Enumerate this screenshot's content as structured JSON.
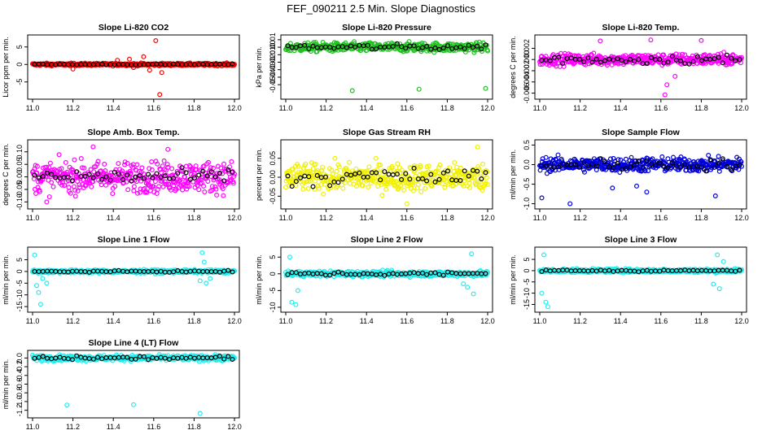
{
  "title": "FEF_090211  2.5 Min. Slope Diagnostics",
  "chart_data": [
    {
      "type": "scatter",
      "title": "Slope Li-820 CO2",
      "ylabel": "Licor ppm per min.",
      "xlim": [
        11.0,
        12.0
      ],
      "ylim": [
        -9,
        7.5
      ],
      "xticks": [
        "11.0",
        "11.2",
        "11.4",
        "11.6",
        "11.8",
        "12.0"
      ],
      "yticks": [
        "-5",
        "0",
        "5"
      ],
      "ytick_values": [
        -5,
        0,
        5
      ],
      "color": "#ff0000",
      "base_spread": 0.35,
      "outliers": [
        {
          "x": 11.61,
          "y": 6.8
        },
        {
          "x": 11.55,
          "y": 2.2
        },
        {
          "x": 11.48,
          "y": 1.5
        },
        {
          "x": 11.58,
          "y": -1.6
        },
        {
          "x": 11.64,
          "y": -2.3
        },
        {
          "x": 11.2,
          "y": -1.3
        },
        {
          "x": 11.63,
          "y": -8.6
        },
        {
          "x": 11.5,
          "y": -0.9
        },
        {
          "x": 11.42,
          "y": 1.2
        }
      ],
      "dark_spread": 0.15
    },
    {
      "type": "scatter",
      "title": "Slope Li-820 Pressure",
      "ylabel": "kPa per min.",
      "xlim": [
        11.0,
        12.0
      ],
      "ylim": [
        -0.065,
        0.012
      ],
      "xticks": [
        "11.0",
        "11.2",
        "11.4",
        "11.6",
        "11.8",
        "12.0"
      ],
      "yticks": [
        "-0.05",
        "-0.04",
        "-0.03",
        "-0.02",
        "-0.01",
        "0.00",
        "0.01"
      ],
      "ytick_values": [
        -0.05,
        -0.04,
        -0.03,
        -0.02,
        -0.01,
        0.0,
        0.01
      ],
      "color": "#22c022",
      "base_spread": 0.006,
      "outliers": [
        {
          "x": 11.33,
          "y": -0.058
        },
        {
          "x": 11.66,
          "y": -0.056
        },
        {
          "x": 11.99,
          "y": -0.055
        }
      ],
      "dark_spread": 0.004
    },
    {
      "type": "scatter",
      "title": "Slope Li-820 Temp.",
      "ylabel": "degrees C per min.",
      "xlim": [
        11.0,
        12.0
      ],
      "ylim": [
        -0.0065,
        0.0038
      ],
      "xticks": [
        "11.0",
        "11.2",
        "11.4",
        "11.6",
        "11.8",
        "12.0"
      ],
      "yticks": [
        "-0.006",
        "-0.004",
        "-0.002",
        "0.000",
        "0.002"
      ],
      "ytick_values": [
        -0.006,
        -0.004,
        -0.002,
        0.0,
        0.002
      ],
      "color": "#ff00ff",
      "base_spread": 0.001,
      "outliers": [
        {
          "x": 11.55,
          "y": 0.0035
        },
        {
          "x": 11.62,
          "y": -0.0063
        },
        {
          "x": 11.63,
          "y": -0.0045
        },
        {
          "x": 11.3,
          "y": 0.0033
        },
        {
          "x": 11.8,
          "y": 0.0034
        },
        {
          "x": 11.67,
          "y": -0.003
        }
      ],
      "dark_spread": 0.0008
    },
    {
      "type": "scatter",
      "title": "Slope Amb. Box Temp.",
      "ylabel": "degrees C per min.",
      "xlim": [
        11.0,
        12.0
      ],
      "ylim": [
        -0.115,
        0.135
      ],
      "xticks": [
        "11.0",
        "11.2",
        "11.4",
        "11.6",
        "11.8",
        "12.0"
      ],
      "yticks": [
        "-0.10",
        "-0.05",
        "0.00",
        "0.05",
        "0.10"
      ],
      "ytick_values": [
        -0.1,
        -0.05,
        0.0,
        0.05,
        0.1
      ],
      "color": "#ff00ff",
      "base_spread": 0.06,
      "outliers": [
        {
          "x": 11.3,
          "y": 0.12
        },
        {
          "x": 11.07,
          "y": -0.1
        },
        {
          "x": 11.67,
          "y": 0.11
        }
      ],
      "dark_spread": 0.03
    },
    {
      "type": "scatter",
      "title": "Slope Gas Stream RH",
      "ylabel": "percent per min.",
      "xlim": [
        11.0,
        12.0
      ],
      "ylim": [
        -0.075,
        0.09
      ],
      "xticks": [
        "11.0",
        "11.2",
        "11.4",
        "11.6",
        "11.8",
        "12.0"
      ],
      "yticks": [
        "-0.05",
        "0.00",
        "0.05"
      ],
      "ytick_values": [
        -0.05,
        0.0,
        0.05
      ],
      "color": "#f0f000",
      "base_spread": 0.035,
      "outliers": [
        {
          "x": 11.95,
          "y": 0.08
        },
        {
          "x": 11.6,
          "y": -0.07
        }
      ],
      "dark_spread": 0.025
    },
    {
      "type": "scatter",
      "title": "Slope Sample Flow",
      "ylabel": "ml/min per min.",
      "xlim": [
        11.0,
        12.0
      ],
      "ylim": [
        -1.05,
        0.55
      ],
      "xticks": [
        "11.0",
        "11.2",
        "11.4",
        "11.6",
        "11.8",
        "12.0"
      ],
      "yticks": [
        "-1.0",
        "-0.5",
        "0.0",
        "0.5"
      ],
      "ytick_values": [
        -1.0,
        -0.5,
        0.0,
        0.5
      ],
      "color": "#0000dd",
      "base_spread": 0.18,
      "outliers": [
        {
          "x": 11.15,
          "y": -1.0
        },
        {
          "x": 11.01,
          "y": -0.85
        },
        {
          "x": 11.53,
          "y": -0.7
        },
        {
          "x": 11.87,
          "y": -0.8
        },
        {
          "x": 11.36,
          "y": -0.6
        },
        {
          "x": 11.48,
          "y": -0.55
        }
      ],
      "dark_spread": 0.15
    },
    {
      "type": "scatter",
      "title": "Slope Line 1 Flow",
      "ylabel": "ml/min per min.",
      "xlim": [
        11.0,
        12.0
      ],
      "ylim": [
        -16,
        9
      ],
      "xticks": [
        "11.0",
        "11.2",
        "11.4",
        "11.6",
        "11.8",
        "12.0"
      ],
      "yticks": [
        "-15",
        "-10",
        "-5",
        "0",
        "5"
      ],
      "ytick_values": [
        -15,
        -10,
        -5,
        0,
        5
      ],
      "color": "#22eeee",
      "base_spread": 0.7,
      "outliers": [
        {
          "x": 11.02,
          "y": -6
        },
        {
          "x": 11.03,
          "y": -9
        },
        {
          "x": 11.04,
          "y": -14
        },
        {
          "x": 11.05,
          "y": -3
        },
        {
          "x": 11.07,
          "y": -5
        },
        {
          "x": 11.01,
          "y": 7
        },
        {
          "x": 11.84,
          "y": 8
        },
        {
          "x": 11.86,
          "y": -5
        },
        {
          "x": 11.88,
          "y": -3
        },
        {
          "x": 11.83,
          "y": -4
        },
        {
          "x": 11.85,
          "y": 4
        }
      ],
      "dark_spread": 0.3
    },
    {
      "type": "scatter",
      "title": "Slope Line 2 Flow",
      "ylabel": "ml/min per min.",
      "xlim": [
        11.0,
        12.0
      ],
      "ylim": [
        -10.5,
        7
      ],
      "xticks": [
        "11.0",
        "11.2",
        "11.4",
        "11.6",
        "11.8",
        "12.0"
      ],
      "yticks": [
        "-10",
        "-5",
        "0",
        "5"
      ],
      "ytick_values": [
        -10,
        -5,
        0,
        5
      ],
      "color": "#22eeee",
      "base_spread": 0.8,
      "outliers": [
        {
          "x": 11.03,
          "y": -8.5
        },
        {
          "x": 11.05,
          "y": -9.2
        },
        {
          "x": 11.02,
          "y": 5
        },
        {
          "x": 11.92,
          "y": 6
        },
        {
          "x": 11.9,
          "y": -4
        },
        {
          "x": 11.93,
          "y": -6
        },
        {
          "x": 11.88,
          "y": -3
        },
        {
          "x": 11.06,
          "y": -5
        }
      ],
      "dark_spread": 0.6
    },
    {
      "type": "scatter",
      "title": "Slope Line 3 Flow",
      "ylabel": "ml/min per min.",
      "xlim": [
        11.0,
        12.0
      ],
      "ylim": [
        -17,
        9
      ],
      "xticks": [
        "11.0",
        "11.2",
        "11.4",
        "11.6",
        "11.8",
        "12.0"
      ],
      "yticks": [
        "-15",
        "-10",
        "-5",
        "0",
        "5"
      ],
      "ytick_values": [
        -15,
        -10,
        -5,
        0,
        5
      ],
      "color": "#22eeee",
      "base_spread": 0.8,
      "outliers": [
        {
          "x": 11.01,
          "y": -10
        },
        {
          "x": 11.03,
          "y": -14
        },
        {
          "x": 11.04,
          "y": -16
        },
        {
          "x": 11.02,
          "y": 7
        },
        {
          "x": 11.88,
          "y": 7
        },
        {
          "x": 11.86,
          "y": -6
        },
        {
          "x": 11.89,
          "y": -8
        },
        {
          "x": 11.91,
          "y": 4
        }
      ],
      "dark_spread": 0.4
    },
    {
      "type": "scatter",
      "title": "Slope Line 4 (LT) Flow",
      "ylabel": "ml/min per min.",
      "xlim": [
        11.0,
        12.0
      ],
      "ylim": [
        -1.3,
        0.1
      ],
      "xticks": [
        "11.0",
        "11.2",
        "11.4",
        "11.6",
        "11.8",
        "12.0"
      ],
      "yticks": [
        "-1.2",
        "-1.0",
        "-0.8",
        "-0.6",
        "-0.4",
        "-0.2",
        "0.0"
      ],
      "ytick_values": [
        -1.2,
        -1.0,
        -0.8,
        -0.6,
        -0.4,
        -0.2,
        0.0
      ],
      "color": "#22eeee",
      "base_spread": 0.06,
      "outliers": [
        {
          "x": 11.17,
          "y": -1.08
        },
        {
          "x": 11.5,
          "y": -1.07
        },
        {
          "x": 11.83,
          "y": -1.27
        }
      ],
      "dark_spread": 0.04
    }
  ]
}
